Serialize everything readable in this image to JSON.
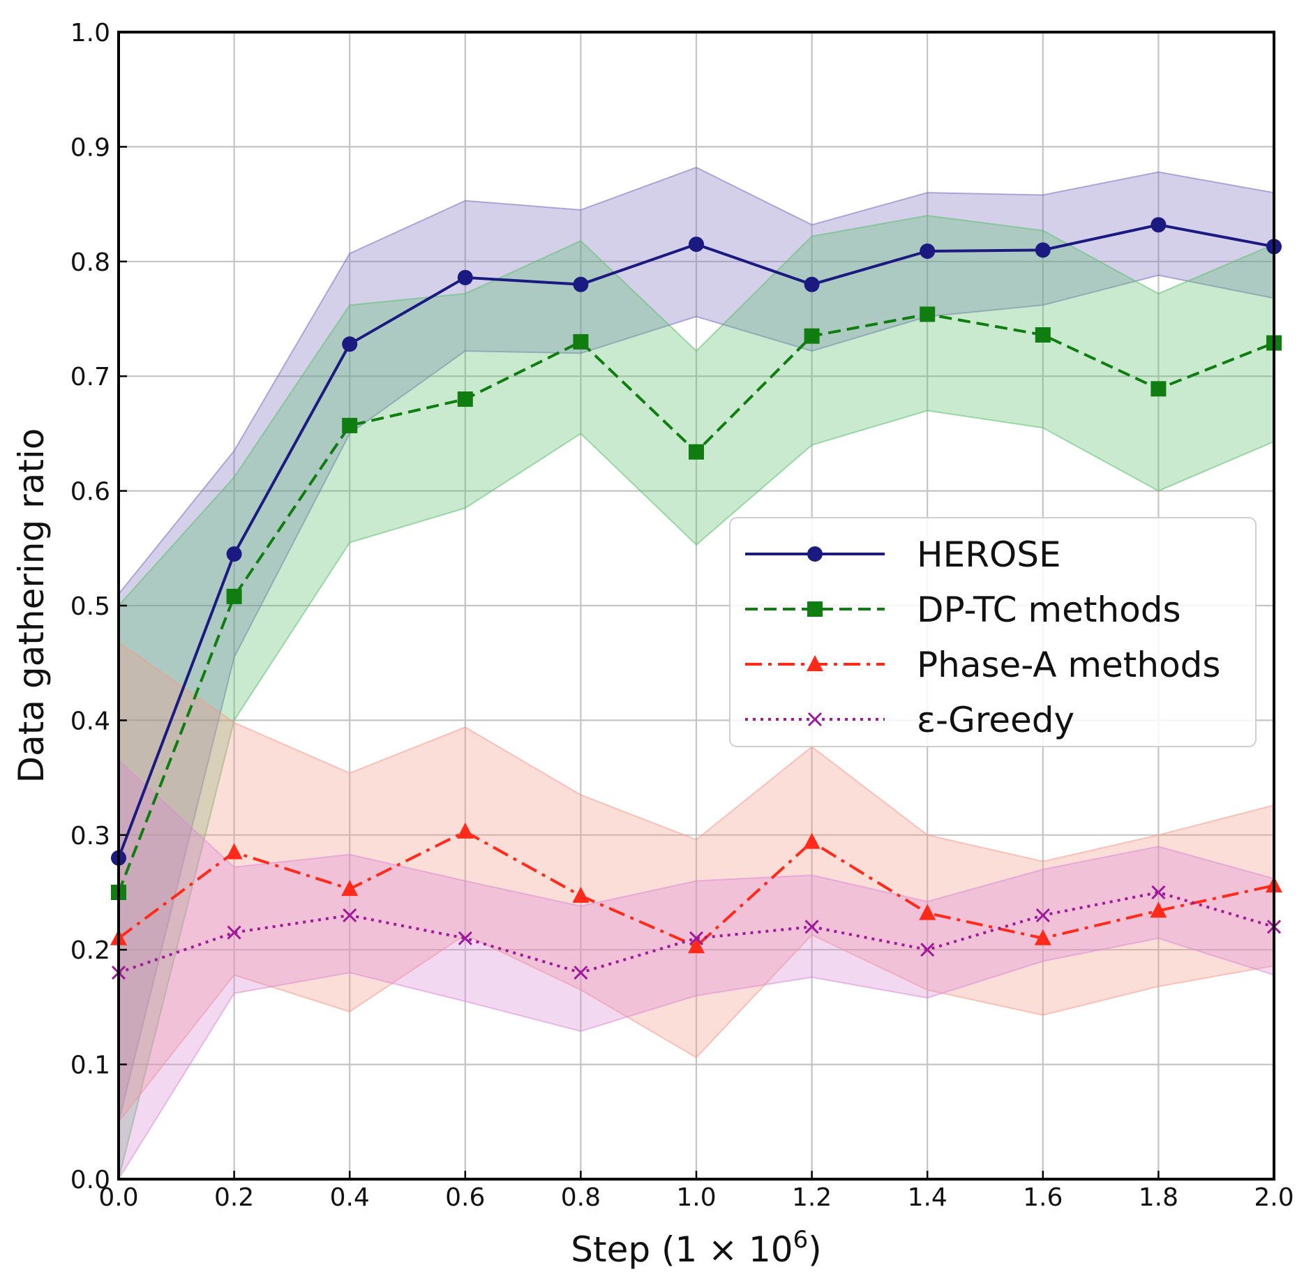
{
  "chart_data": {
    "type": "line",
    "title": "",
    "xlabel": "Step (1 × 10⁶)",
    "xlabel_parts": {
      "prefix": "Step (1 × 10",
      "superscript": "6",
      "suffix": ")"
    },
    "ylabel": "Data gathering ratio",
    "xlim": [
      0.0,
      2.0
    ],
    "ylim": [
      0.0,
      1.0
    ],
    "x_ticks": [
      0.0,
      0.2,
      0.4,
      0.6,
      0.8,
      1.0,
      1.2,
      1.4,
      1.6,
      1.8,
      2.0
    ],
    "x_tick_labels": [
      "0.0",
      "0.2",
      "0.4",
      "0.6",
      "0.8",
      "1.0",
      "1.2",
      "1.4",
      "1.6",
      "1.8",
      "2.0"
    ],
    "y_ticks": [
      0.0,
      0.1,
      0.2,
      0.3,
      0.4,
      0.5,
      0.6,
      0.7,
      0.8,
      0.9,
      1.0
    ],
    "y_tick_labels": [
      "0.0",
      "0.1",
      "0.2",
      "0.3",
      "0.4",
      "0.5",
      "0.6",
      "0.7",
      "0.8",
      "0.9",
      "1.0"
    ],
    "grid": true,
    "legend_position": "center-right",
    "x": [
      0.0,
      0.2,
      0.4,
      0.6,
      0.8,
      1.0,
      1.2,
      1.4,
      1.6,
      1.8,
      2.0
    ],
    "series": [
      {
        "name": "HEROSE",
        "color": "#1a1a80",
        "band_color": "#7b6fc0",
        "marker": "circle",
        "line_style": "solid",
        "values": [
          0.28,
          0.545,
          0.728,
          0.786,
          0.78,
          0.815,
          0.78,
          0.809,
          0.81,
          0.832,
          0.813
        ],
        "band_lower": [
          0.05,
          0.455,
          0.65,
          0.722,
          0.72,
          0.752,
          0.722,
          0.752,
          0.762,
          0.788,
          0.768
        ],
        "band_upper": [
          0.51,
          0.635,
          0.807,
          0.853,
          0.845,
          0.882,
          0.832,
          0.86,
          0.858,
          0.878,
          0.86
        ]
      },
      {
        "name": "DP-TC methods",
        "color": "#0f7d0f",
        "band_color": "#5cbf6e",
        "marker": "square",
        "line_style": "dashed",
        "values": [
          0.25,
          0.508,
          0.657,
          0.68,
          0.73,
          0.634,
          0.735,
          0.754,
          0.736,
          0.689,
          0.729
        ],
        "band_lower": [
          0.0,
          0.4,
          0.555,
          0.585,
          0.65,
          0.553,
          0.64,
          0.67,
          0.655,
          0.6,
          0.643
        ],
        "band_upper": [
          0.5,
          0.612,
          0.762,
          0.772,
          0.818,
          0.722,
          0.822,
          0.84,
          0.827,
          0.772,
          0.815
        ]
      },
      {
        "name": "Phase-A methods",
        "color": "#ff2a1a",
        "band_color": "#f79a8c",
        "marker": "triangle",
        "line_style": "dashdot",
        "values": [
          0.21,
          0.285,
          0.253,
          0.303,
          0.247,
          0.203,
          0.294,
          0.232,
          0.21,
          0.234,
          0.256
        ],
        "band_lower": [
          0.05,
          0.178,
          0.146,
          0.213,
          0.165,
          0.106,
          0.213,
          0.165,
          0.143,
          0.168,
          0.186
        ],
        "band_upper": [
          0.468,
          0.398,
          0.354,
          0.394,
          0.335,
          0.296,
          0.377,
          0.3,
          0.277,
          0.3,
          0.326
        ]
      },
      {
        "name": "ε-Greedy",
        "color": "#a0199a",
        "band_color": "#dc8ad6",
        "marker": "x",
        "line_style": "dotted",
        "values": [
          0.18,
          0.215,
          0.23,
          0.21,
          0.18,
          0.21,
          0.22,
          0.2,
          0.23,
          0.25,
          0.22
        ],
        "band_lower": [
          0.0,
          0.162,
          0.18,
          0.155,
          0.129,
          0.16,
          0.176,
          0.158,
          0.19,
          0.21,
          0.178
        ],
        "band_upper": [
          0.365,
          0.272,
          0.283,
          0.26,
          0.238,
          0.26,
          0.265,
          0.242,
          0.27,
          0.29,
          0.262
        ]
      }
    ]
  }
}
